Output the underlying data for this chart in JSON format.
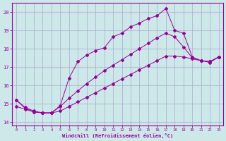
{
  "xlabel": "Windchill (Refroidissement éolien,°C)",
  "bg_color": "#cce8e8",
  "grid_color": "#aaaacc",
  "line_color": "#990099",
  "xlim": [
    -0.5,
    23.5
  ],
  "ylim": [
    13.8,
    20.5
  ],
  "yticks": [
    14,
    15,
    16,
    17,
    18,
    19,
    20
  ],
  "xticks": [
    0,
    1,
    2,
    3,
    4,
    5,
    6,
    7,
    8,
    9,
    10,
    11,
    12,
    13,
    14,
    15,
    16,
    17,
    18,
    19,
    20,
    21,
    22,
    23
  ],
  "series": [
    {
      "x": [
        0,
        1,
        2,
        3,
        4,
        5,
        6,
        7,
        8,
        9,
        10,
        11,
        12,
        13,
        14,
        15,
        16,
        17,
        18,
        19,
        20,
        21,
        22,
        23
      ],
      "y": [
        15.2,
        14.8,
        14.6,
        14.5,
        14.5,
        14.9,
        16.4,
        17.3,
        17.65,
        17.9,
        18.05,
        18.65,
        18.85,
        19.2,
        19.4,
        19.65,
        19.8,
        20.2,
        19.0,
        18.85,
        17.55,
        17.35,
        17.25,
        17.55
      ]
    },
    {
      "x": [
        0,
        1,
        2,
        3,
        4,
        5,
        6,
        7,
        8,
        9,
        10,
        11,
        12,
        13,
        14,
        15,
        16,
        17,
        18,
        19,
        20,
        21,
        22,
        23
      ],
      "y": [
        15.2,
        14.75,
        14.55,
        14.5,
        14.5,
        14.85,
        15.3,
        15.7,
        16.1,
        16.45,
        16.8,
        17.1,
        17.4,
        17.7,
        18.0,
        18.3,
        18.6,
        18.85,
        18.65,
        18.1,
        17.5,
        17.35,
        17.3,
        17.55
      ]
    },
    {
      "x": [
        0,
        1,
        2,
        3,
        4,
        5,
        6,
        7,
        8,
        9,
        10,
        11,
        12,
        13,
        14,
        15,
        16,
        17,
        18,
        19,
        20,
        21,
        22,
        23
      ],
      "y": [
        14.85,
        14.7,
        14.55,
        14.5,
        14.5,
        14.6,
        14.85,
        15.1,
        15.35,
        15.6,
        15.85,
        16.1,
        16.35,
        16.6,
        16.85,
        17.1,
        17.35,
        17.6,
        17.6,
        17.55,
        17.45,
        17.35,
        17.3,
        17.55
      ]
    }
  ]
}
